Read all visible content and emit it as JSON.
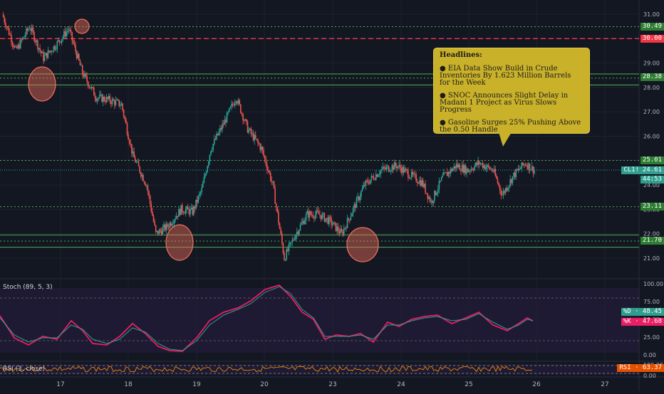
{
  "colors": {
    "background": "#131722",
    "up": "#26a69a",
    "down": "#ef5350",
    "support_line": "#4caf50",
    "resistance_line": "#f23645",
    "stoch_k": "#e91e63",
    "stoch_d": "#2f9e8e",
    "rsi": "#ff9800",
    "headline_box": "#c9b12a"
  },
  "headlines": {
    "title": "Headlines:",
    "items": [
      "● EIA Data Show Build in Crude Inventories By 1.623 Million Barrels for the Week",
      "● SNOC Announces Slight Delay in Madani 1 Project as Virus Slows Progress",
      "● Gasoline Surges 25% Pushing Above the 0.50 Handle"
    ]
  },
  "price_tags": {
    "level_30_49": "30.49",
    "level_30_00": "30.00",
    "level_28_38": "28.38",
    "level_25_01": "25.01",
    "last_price": "24.61",
    "symbol": "CL1!",
    "countdown": "44:53",
    "level_23_11": "23.11",
    "level_21_70": "21.70"
  },
  "indicators": {
    "stoch_label": "Stoch (89, 5, 3)",
    "stoch_d_tag": "%D · 48.45",
    "stoch_k_tag": "%K · 47.68",
    "rsi_label": "RSI (3, close)",
    "rsi_tag": "RSI · 63.37"
  },
  "chart_data": [
    {
      "type": "candlestick",
      "x_tick_labels": [
        "17",
        "18",
        "19",
        "20",
        "23",
        "24",
        "25",
        "26",
        "27"
      ],
      "y_tick_labels": [
        "31.00",
        "30.00",
        "29.00",
        "28.00",
        "27.00",
        "26.00",
        "25.00",
        "24.00",
        "23.00",
        "22.00",
        "21.00"
      ],
      "ylim": [
        20.5,
        31.3
      ],
      "grid": true,
      "horizontal_levels": [
        30.49,
        30.0,
        28.38,
        25.01,
        23.11,
        21.7
      ],
      "last_price": 24.61,
      "close_path": [
        [
          0,
          31.0
        ],
        [
          12,
          29.5
        ],
        [
          24,
          30.5
        ],
        [
          36,
          29.2
        ],
        [
          48,
          29.8
        ],
        [
          58,
          30.4
        ],
        [
          70,
          28.6
        ],
        [
          82,
          27.6
        ],
        [
          92,
          27.5
        ],
        [
          104,
          27.3
        ],
        [
          114,
          25.2
        ],
        [
          126,
          24.0
        ],
        [
          134,
          22.0
        ],
        [
          144,
          22.3
        ],
        [
          156,
          23.0
        ],
        [
          166,
          22.9
        ],
        [
          174,
          23.8
        ],
        [
          182,
          25.5
        ],
        [
          194,
          26.6
        ],
        [
          204,
          27.6
        ],
        [
          214,
          26.3
        ],
        [
          226,
          25.5
        ],
        [
          236,
          24.0
        ],
        [
          246,
          21.0
        ],
        [
          256,
          22.0
        ],
        [
          266,
          22.8
        ],
        [
          276,
          22.8
        ],
        [
          286,
          22.5
        ],
        [
          296,
          22.0
        ],
        [
          306,
          23.0
        ],
        [
          316,
          24.0
        ],
        [
          330,
          24.6
        ],
        [
          344,
          24.8
        ],
        [
          356,
          24.4
        ],
        [
          366,
          24.1
        ],
        [
          374,
          23.3
        ],
        [
          384,
          24.3
        ],
        [
          396,
          24.8
        ],
        [
          406,
          24.6
        ],
        [
          416,
          24.9
        ],
        [
          428,
          24.6
        ],
        [
          436,
          23.6
        ],
        [
          446,
          24.4
        ],
        [
          456,
          24.9
        ],
        [
          464,
          24.6
        ]
      ],
      "wick_extremes": {
        "high": 30.9,
        "low": 20.8
      }
    },
    {
      "type": "line",
      "title": "Stoch (89, 5, 3)",
      "ylim": [
        0,
        100
      ],
      "y_tick_labels": [
        "100.00",
        "75.00",
        "50.00",
        "25.00",
        "0.00"
      ],
      "series": [
        {
          "name": "%K",
          "last": 47.68,
          "points": [
            [
              0,
              55
            ],
            [
              20,
              24
            ],
            [
              40,
              14
            ],
            [
              60,
              26
            ],
            [
              80,
              22
            ],
            [
              100,
              48
            ],
            [
              116,
              34
            ],
            [
              130,
              16
            ],
            [
              150,
              14
            ],
            [
              168,
              26
            ],
            [
              186,
              44
            ],
            [
              204,
              30
            ],
            [
              222,
              12
            ],
            [
              238,
              6
            ],
            [
              256,
              5
            ],
            [
              276,
              24
            ],
            [
              294,
              48
            ],
            [
              314,
              60
            ],
            [
              334,
              66
            ],
            [
              352,
              76
            ],
            [
              372,
              92
            ],
            [
              392,
              98
            ],
            [
              408,
              82
            ],
            [
              424,
              60
            ],
            [
              440,
              50
            ],
            [
              456,
              22
            ],
            [
              472,
              28
            ],
            [
              490,
              26
            ],
            [
              506,
              30
            ],
            [
              524,
              18
            ],
            [
              544,
              46
            ],
            [
              560,
              40
            ],
            [
              578,
              50
            ],
            [
              596,
              54
            ],
            [
              614,
              56
            ],
            [
              634,
              44
            ],
            [
              654,
              52
            ],
            [
              672,
              60
            ],
            [
              692,
              42
            ],
            [
              712,
              34
            ],
            [
              728,
              44
            ],
            [
              740,
              52
            ],
            [
              748,
              47.68
            ]
          ]
        },
        {
          "name": "%D",
          "last": 48.45,
          "points": [
            [
              0,
              52
            ],
            [
              20,
              28
            ],
            [
              40,
              18
            ],
            [
              60,
              24
            ],
            [
              80,
              24
            ],
            [
              100,
              42
            ],
            [
              116,
              36
            ],
            [
              130,
              22
            ],
            [
              150,
              16
            ],
            [
              168,
              22
            ],
            [
              186,
              38
            ],
            [
              204,
              32
            ],
            [
              222,
              16
            ],
            [
              238,
              8
            ],
            [
              256,
              6
            ],
            [
              276,
              20
            ],
            [
              294,
              42
            ],
            [
              314,
              56
            ],
            [
              334,
              64
            ],
            [
              352,
              72
            ],
            [
              372,
              88
            ],
            [
              392,
              96
            ],
            [
              408,
              86
            ],
            [
              424,
              64
            ],
            [
              440,
              52
            ],
            [
              456,
              26
            ],
            [
              472,
              26
            ],
            [
              490,
              26
            ],
            [
              506,
              28
            ],
            [
              524,
              22
            ],
            [
              544,
              42
            ],
            [
              560,
              42
            ],
            [
              578,
              48
            ],
            [
              596,
              52
            ],
            [
              614,
              54
            ],
            [
              634,
              48
            ],
            [
              654,
              50
            ],
            [
              672,
              58
            ],
            [
              692,
              46
            ],
            [
              712,
              36
            ],
            [
              728,
              42
            ],
            [
              740,
              50
            ],
            [
              748,
              48.45
            ]
          ]
        }
      ]
    },
    {
      "type": "line",
      "title": "RSI (3, close)",
      "ylim": [
        0,
        100
      ],
      "y_tick_labels": [
        "100.00",
        "0.00"
      ],
      "series": [
        {
          "name": "RSI",
          "last": 63.37
        }
      ]
    }
  ]
}
